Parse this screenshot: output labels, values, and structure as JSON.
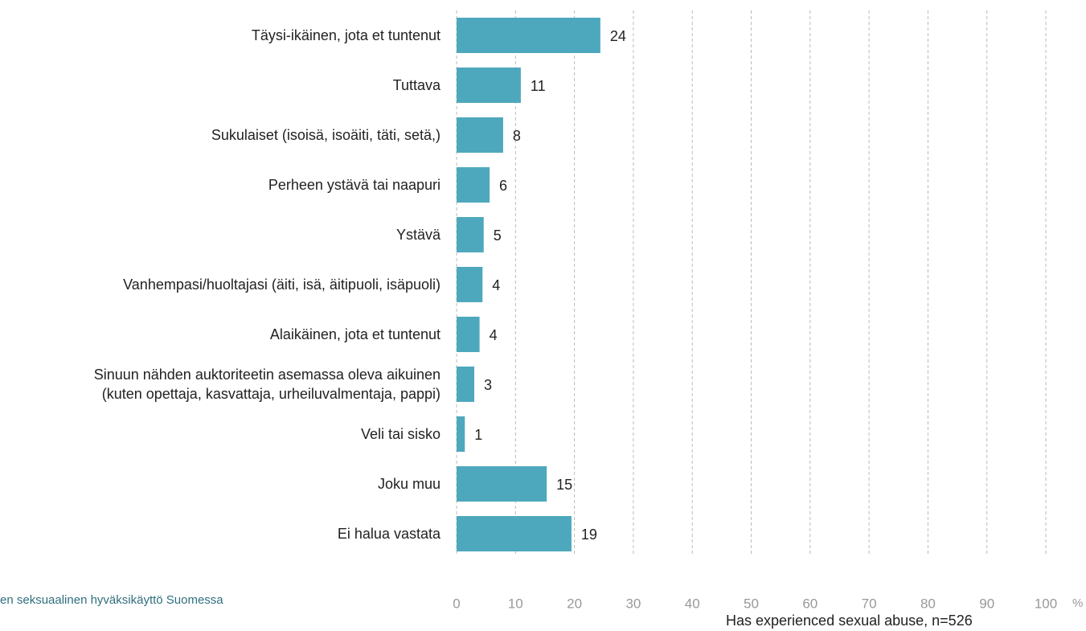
{
  "chart_data": {
    "type": "barh",
    "categories": [
      "Täysi-ikäinen, jota et tuntenut",
      "Tuttava",
      "Sukulaiset (isoisä, isoäiti, täti, setä,)",
      "Perheen ystävä tai naapuri",
      "Ystävä",
      "Vanhempasi/huoltajasi (äiti, isä, äitipuoli, isäpuoli)",
      "Alaikäinen, jota et tuntenut",
      "Sinuun nähden auktoriteetin asemassa oleva aikuinen\n(kuten opettaja, kasvattaja, urheiluvalmentaja, pappi)",
      "Veli tai sisko",
      "Joku muu",
      "Ei halua vastata"
    ],
    "values": [
      24.4,
      10.9,
      7.9,
      5.6,
      4.6,
      4.4,
      3.9,
      3.0,
      1.4,
      15.3,
      19.5
    ],
    "value_labels": [
      "24",
      "11",
      "8",
      "6",
      "5",
      "4",
      "4",
      "3",
      "1",
      "15",
      "19"
    ],
    "color": "#4ea8bd",
    "xlim": [
      0,
      100
    ],
    "xticks": [
      0,
      10,
      20,
      30,
      40,
      50,
      60,
      70,
      80,
      90,
      100
    ],
    "xlabel": "%",
    "grid": true,
    "footer": "en seksuaalinen hyväksikäyttö Suomessa",
    "note": "Has experienced sexual abuse, n=526"
  }
}
